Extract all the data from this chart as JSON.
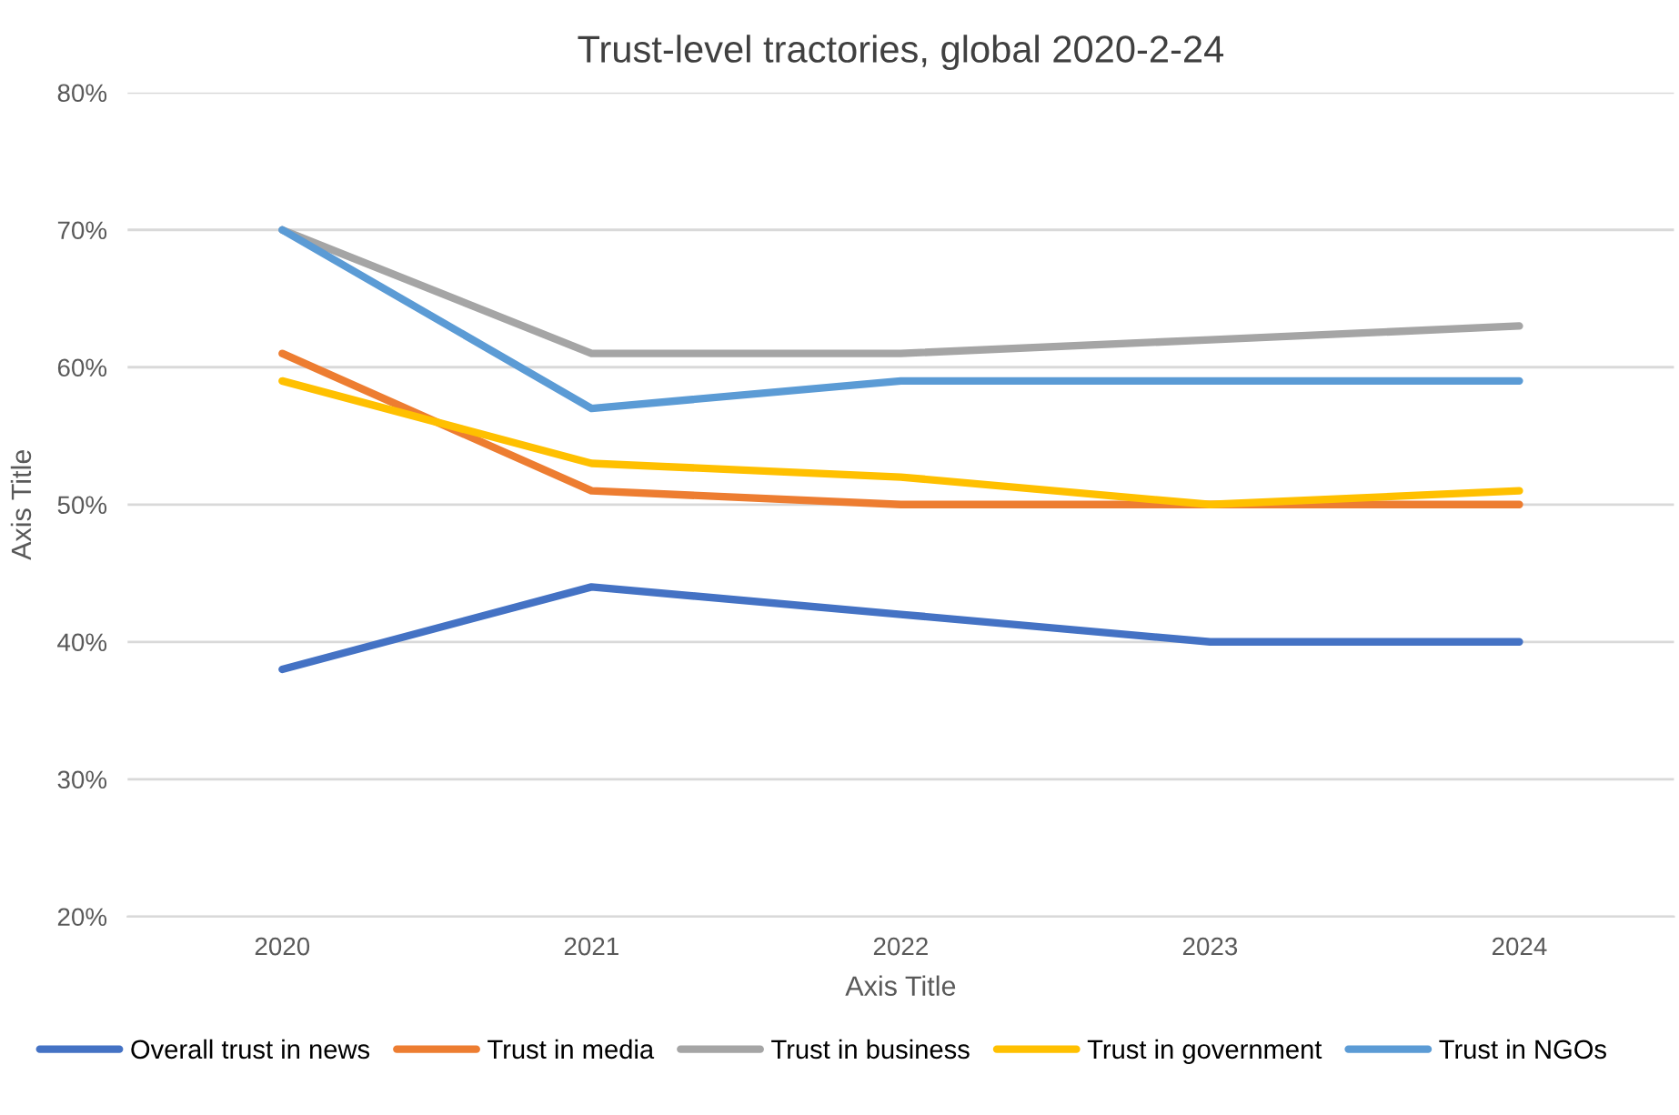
{
  "chart_data": {
    "type": "line",
    "title": "Trust-level tractories, global 2020-2-24",
    "xlabel": "Axis Title",
    "ylabel": "Axis Title",
    "categories": [
      "2020",
      "2021",
      "2022",
      "2023",
      "2024"
    ],
    "series": [
      {
        "name": "Overall trust in news",
        "color": "#4472c4",
        "values": [
          38,
          44,
          42,
          40,
          40
        ]
      },
      {
        "name": "Trust in media",
        "color": "#ed7d31",
        "values": [
          61,
          51,
          50,
          50,
          50
        ]
      },
      {
        "name": "Trust in business",
        "color": "#a5a5a5",
        "values": [
          70,
          61,
          61,
          62,
          63
        ]
      },
      {
        "name": "Trust in government",
        "color": "#ffc000",
        "values": [
          59,
          53,
          52,
          50,
          51
        ]
      },
      {
        "name": "Trust in NGOs",
        "color": "#5b9bd5",
        "values": [
          70,
          57,
          59,
          59,
          59
        ]
      }
    ],
    "ylim": [
      20,
      80
    ],
    "yticks": [
      {
        "value": 20,
        "label": "20%"
      },
      {
        "value": 30,
        "label": "30%"
      },
      {
        "value": 40,
        "label": "40%"
      },
      {
        "value": 50,
        "label": "50%"
      },
      {
        "value": 60,
        "label": "60%"
      },
      {
        "value": 70,
        "label": "70%"
      },
      {
        "value": 80,
        "label": "80%"
      }
    ],
    "grid": "y",
    "legend": "bottom",
    "marker": "none",
    "line_style": "solid"
  }
}
